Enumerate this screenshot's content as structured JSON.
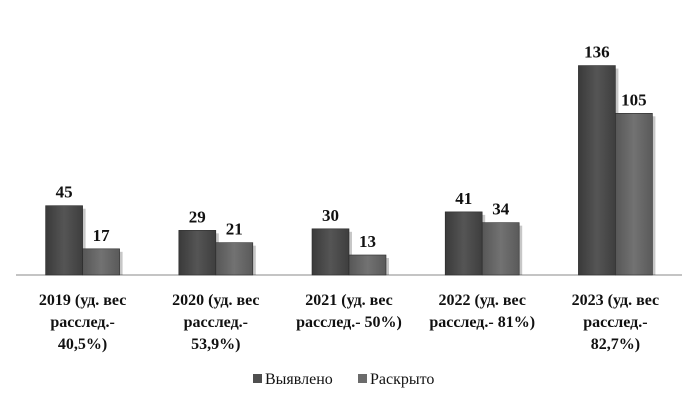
{
  "chart_data": {
    "type": "bar",
    "title": "",
    "xlabel": "",
    "ylabel": "",
    "ylim": [
      0,
      150
    ],
    "grid": false,
    "legend_position": "bottom",
    "categories": [
      [
        "2019 (уд. вес",
        "расслед.-",
        "40,5%)"
      ],
      [
        "2020 (уд. вес",
        "расслед.-",
        "53,9%)"
      ],
      [
        "2021 (уд. вес",
        "расслед.- 50%)"
      ],
      [
        "2022 (уд. вес",
        "расслед.- 81%)"
      ],
      [
        "2023 (уд. вес",
        "расслед.-",
        "82,7%)"
      ]
    ],
    "series": [
      {
        "name": "Выявлено",
        "color": "#4f4f4f",
        "values": [
          45,
          29,
          30,
          41,
          136
        ]
      },
      {
        "name": "Раскрыто",
        "color": "#6b6b6b",
        "values": [
          17,
          21,
          13,
          34,
          105
        ]
      }
    ]
  }
}
